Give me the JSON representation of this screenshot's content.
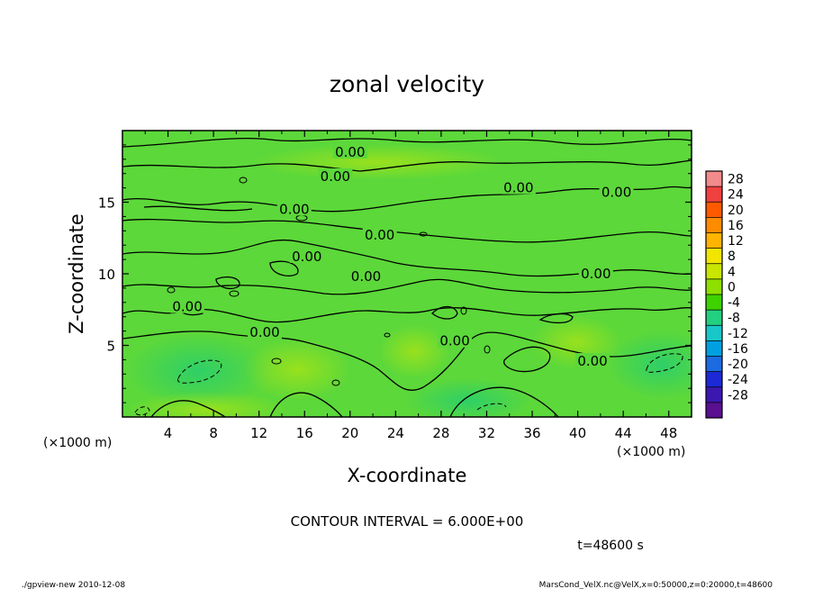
{
  "chart_data": {
    "type": "heatmap",
    "title": "zonal velocity",
    "xlabel": "X-coordinate",
    "ylabel": "Z-coordinate",
    "x_unit": "(×1000 m)",
    "y_unit": "(×1000 m)",
    "xlim": [
      0,
      50
    ],
    "ylim": [
      0,
      20
    ],
    "x_ticks": [
      4,
      8,
      12,
      16,
      20,
      24,
      28,
      32,
      36,
      40,
      44,
      48
    ],
    "y_ticks": [
      5,
      10,
      15
    ],
    "colorbar": {
      "levels": [
        28,
        24,
        20,
        16,
        12,
        8,
        4,
        0,
        -4,
        -8,
        -12,
        -16,
        -20,
        -24,
        -28
      ],
      "colors": [
        "#f28b8b",
        "#f04040",
        "#ff5a00",
        "#ff8c00",
        "#ffb400",
        "#f2e600",
        "#c8e600",
        "#8ee000",
        "#3ed200",
        "#22d080",
        "#18c8c8",
        "#00a0e0",
        "#1c6be0",
        "#1c2ad6",
        "#3c18b0",
        "#5a1090"
      ]
    },
    "field_base_color": "#5cd83a",
    "contour_labels": [
      {
        "text": "0.00",
        "x": 20,
        "y": 18.5
      },
      {
        "text": "0.00",
        "x": 18.7,
        "y": 16.8
      },
      {
        "text": "0.00",
        "x": 34.8,
        "y": 16.0
      },
      {
        "text": "0.00",
        "x": 43.4,
        "y": 15.7
      },
      {
        "text": "0.00",
        "x": 15.1,
        "y": 14.5
      },
      {
        "text": "0.00",
        "x": 22.6,
        "y": 12.7
      },
      {
        "text": "0.00",
        "x": 16.2,
        "y": 11.2
      },
      {
        "text": "0.00",
        "x": 21.4,
        "y": 9.8
      },
      {
        "text": "0.00",
        "x": 41.6,
        "y": 10.0
      },
      {
        "text": "0.00",
        "x": 5.7,
        "y": 7.7
      },
      {
        "text": "0.00",
        "x": 12.5,
        "y": 5.9
      },
      {
        "text": "0.00",
        "x": 29.2,
        "y": 5.3
      },
      {
        "text": "0.00",
        "x": 41.3,
        "y": 3.9
      }
    ],
    "contour_interval": "CONTOUR INTERVAL = 6.000E+00",
    "time_label": "t=48600 s"
  },
  "footer": {
    "left": "./gpview-new 2010-12-08",
    "right": "MarsCond_VelX.nc@VelX,x=0:50000,z=0:20000,t=48600"
  }
}
